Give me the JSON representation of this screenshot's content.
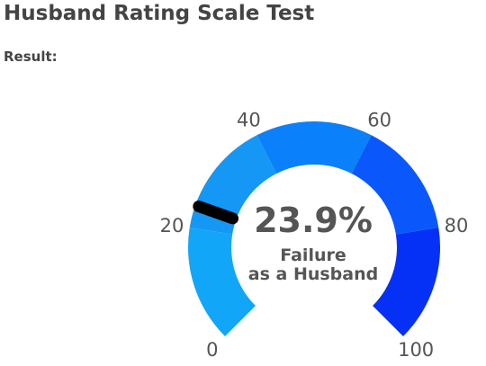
{
  "chart_data": {
    "type": "gauge",
    "title": "Husband Rating Scale Test",
    "subtitle": "Result:",
    "value": 23.9,
    "value_label": "23.9%",
    "label": [
      "Failure",
      "as a Husband"
    ],
    "xlim": [
      0,
      100
    ],
    "ticks": [
      0,
      20,
      40,
      60,
      80,
      100
    ],
    "band_colors": [
      "#12a6f8",
      "#1597f6",
      "#0a80fb",
      "#0a58fb",
      "#0530f6"
    ],
    "needle_color": "#000000"
  }
}
